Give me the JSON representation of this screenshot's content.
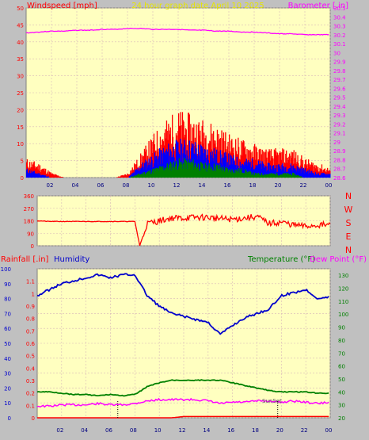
{
  "colors": {
    "background": "#c0c0c0",
    "plot_bg": "#ffffc0",
    "grid": "#d8b8b8",
    "wind_gust": "#ff0000",
    "wind_avg": "#0000ff",
    "wind_low": "#008000",
    "barometer": "#ff00ff",
    "direction": "#ff0000",
    "rainfall": "#ff0000",
    "humidity": "#0000cc",
    "temperature": "#008000",
    "dewpoint": "#ff00ff"
  },
  "header": {
    "left": "Windspeed [mph]",
    "center": "24 hour graph date   April 10 2025",
    "right": "Barometer [.in]"
  },
  "chart_data": [
    {
      "type": "area",
      "title": "24 hour graph date   April 10 2025",
      "ylabel": "Windspeed [mph]",
      "y2label": "Barometer [.in]",
      "x": [
        0,
        1,
        2,
        3,
        4,
        5,
        6,
        7,
        8,
        9,
        10,
        11,
        12,
        13,
        14,
        15,
        16,
        17,
        18,
        19,
        20,
        21,
        22,
        23,
        24
      ],
      "xticks": [
        "02",
        "04",
        "06",
        "08",
        "10",
        "12",
        "14",
        "16",
        "18",
        "20",
        "22",
        "00"
      ],
      "xtick_hours": [
        2,
        4,
        6,
        8,
        10,
        12,
        14,
        16,
        18,
        20,
        22,
        24
      ],
      "ylim": [
        0,
        50
      ],
      "yticks": [
        "0",
        "5",
        "10",
        "15",
        "20",
        "25",
        "30",
        "35",
        "40",
        "45",
        "50"
      ],
      "y2lim": [
        28.6,
        30.5
      ],
      "y2ticks": [
        "28.6",
        "28.7",
        "28.8",
        "28.9",
        "29",
        "29.1",
        "29.2",
        "29.3",
        "29.4",
        "29.5",
        "29.6",
        "29.7",
        "29.8",
        "29.9",
        "30",
        "30.1",
        "30.2",
        "30.3",
        "30.4",
        "30.5"
      ],
      "series": [
        {
          "key": "gust",
          "values": [
            4,
            3,
            1,
            0,
            0,
            0,
            0,
            0,
            1,
            5,
            9,
            12,
            14,
            13,
            12,
            11,
            9,
            8,
            7,
            6,
            6,
            6,
            4,
            3,
            2
          ]
        },
        {
          "key": "avg",
          "values": [
            2,
            1,
            0,
            0,
            0,
            0,
            0,
            0,
            0,
            3,
            5,
            7,
            8,
            8,
            7,
            6,
            5,
            4,
            4,
            3,
            3,
            3,
            2,
            1,
            1
          ]
        },
        {
          "key": "low",
          "values": [
            0,
            0,
            0,
            0,
            0,
            0,
            0,
            0,
            0,
            1,
            2,
            3,
            4,
            4,
            3,
            3,
            2,
            2,
            1,
            1,
            1,
            1,
            0,
            0,
            0
          ]
        },
        {
          "key": "barometer",
          "values": [
            30.22,
            30.23,
            30.24,
            30.24,
            30.25,
            30.25,
            30.26,
            30.26,
            30.27,
            30.27,
            30.26,
            30.26,
            30.26,
            30.25,
            30.25,
            30.24,
            30.24,
            30.23,
            30.23,
            30.22,
            30.21,
            30.21,
            30.2,
            30.2,
            30.2
          ]
        }
      ]
    },
    {
      "type": "line",
      "ylim": [
        0,
        360
      ],
      "yticks": [
        "0",
        "90",
        "180",
        "270",
        "360"
      ],
      "compass": [
        "N",
        "W",
        "S",
        "E",
        "N"
      ],
      "x": [
        0,
        1,
        2,
        3,
        4,
        5,
        6,
        7,
        8,
        8.4,
        9,
        10,
        11,
        12,
        13,
        14,
        15,
        16,
        17,
        18,
        19,
        20,
        21,
        22,
        23,
        24
      ],
      "series": [
        {
          "key": "direction",
          "values": [
            180,
            175,
            175,
            175,
            175,
            175,
            175,
            175,
            175,
            0,
            160,
            180,
            200,
            200,
            205,
            205,
            195,
            190,
            200,
            210,
            160,
            170,
            150,
            140,
            150,
            150
          ]
        }
      ]
    },
    {
      "type": "line",
      "ylabel": "Rainfall [.in]",
      "ylabel2": "Humidity",
      "y2label": "Temperature (°F)",
      "y2label2": "Dew Point (°F)",
      "x": [
        0,
        1,
        2,
        3,
        4,
        5,
        6,
        7,
        8,
        9,
        10,
        11,
        12,
        13,
        14,
        15,
        16,
        17,
        18,
        19,
        20,
        21,
        22,
        23,
        24
      ],
      "xticks": [
        "02",
        "04",
        "06",
        "08",
        "10",
        "12",
        "14",
        "16",
        "18",
        "20",
        "22",
        "00"
      ],
      "xtick_hours": [
        2,
        4,
        6,
        8,
        10,
        12,
        14,
        16,
        18,
        20,
        22,
        24
      ],
      "ylim": [
        0,
        100
      ],
      "ylim_rain": [
        0,
        1.2
      ],
      "y2lim": [
        20,
        135
      ],
      "yticks_humidity": [
        "0",
        "10",
        "20",
        "30",
        "40",
        "50",
        "60",
        "70",
        "80",
        "90",
        "100"
      ],
      "yticks_rain": [
        "0",
        "0.1",
        "0.2",
        "0.3",
        "0.4",
        "0.5",
        "0.6",
        "0.7",
        "0.8",
        "0.9",
        "1",
        "1.1"
      ],
      "y2ticks": [
        "20",
        "30",
        "40",
        "50",
        "60",
        "70",
        "80",
        "90",
        "100",
        "110",
        "120",
        "130"
      ],
      "annotation": "SunSet",
      "series": [
        {
          "key": "humidity",
          "values": [
            82,
            86,
            90,
            92,
            94,
            96,
            94,
            96,
            96,
            82,
            75,
            70,
            68,
            66,
            64,
            56,
            62,
            67,
            70,
            73,
            82,
            84,
            86,
            80,
            81
          ]
        },
        {
          "key": "temperature",
          "values": [
            40,
            40,
            39,
            38,
            38,
            37,
            38,
            37,
            38,
            44,
            47,
            49,
            49,
            49,
            49,
            49,
            47,
            45,
            43,
            41,
            40,
            40,
            40,
            39,
            39
          ]
        },
        {
          "key": "dewpoint",
          "values": [
            29,
            29,
            30,
            30,
            30,
            31,
            30,
            30,
            31,
            33,
            34,
            34,
            34,
            34,
            33,
            31,
            32,
            32,
            33,
            33,
            32,
            33,
            32,
            31,
            32
          ]
        },
        {
          "key": "rainfall",
          "values": [
            0,
            0,
            0,
            0,
            0,
            0,
            0,
            0,
            0,
            0,
            0,
            0,
            0.01,
            0.01,
            0.01,
            0.01,
            0.01,
            0.01,
            0.01,
            0.01,
            0.01,
            0.01,
            0.01,
            0.01,
            0.01
          ]
        }
      ]
    }
  ]
}
